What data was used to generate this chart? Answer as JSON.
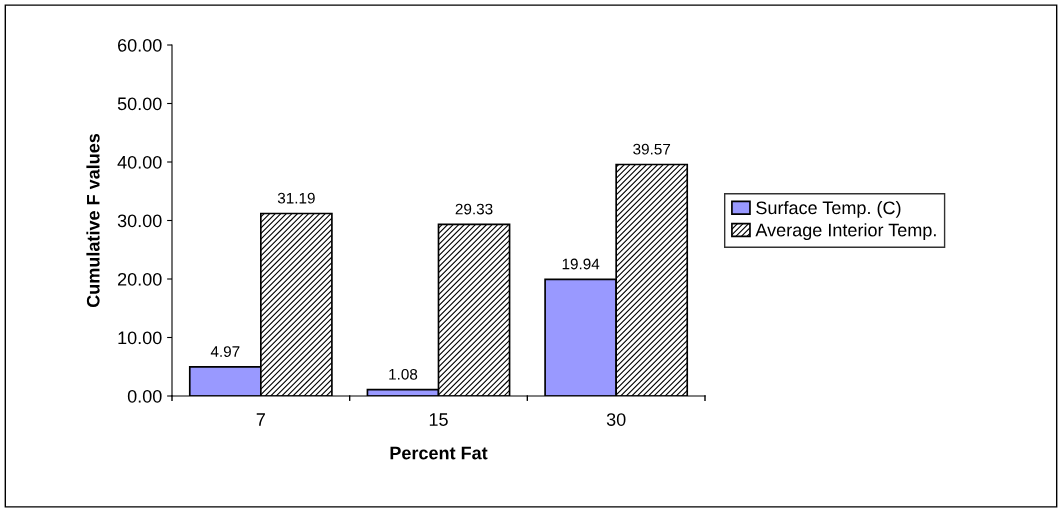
{
  "chart_data": {
    "type": "bar",
    "xlabel": "Percent Fat",
    "ylabel": "Cumulative F values",
    "categories": [
      "7",
      "15",
      "30"
    ],
    "series": [
      {
        "name": "Surface Temp. (C)",
        "color": "#9999ff",
        "values": [
          4.97,
          1.08,
          19.94
        ]
      },
      {
        "name": "Average Interior Temp.",
        "color": "#000000",
        "values": [
          31.19,
          29.33,
          39.57
        ]
      }
    ],
    "ylim": [
      0,
      60
    ],
    "yticks": [
      {
        "value": 0,
        "label": "0.00"
      },
      {
        "value": 10,
        "label": "10.00"
      },
      {
        "value": 20,
        "label": "20.00"
      },
      {
        "value": 30,
        "label": "30.00"
      },
      {
        "value": 40,
        "label": "40.00"
      },
      {
        "value": 50,
        "label": "50.00"
      },
      {
        "value": 60,
        "label": "60.00"
      }
    ],
    "data_labels": true,
    "legend": "right",
    "grid": false
  }
}
